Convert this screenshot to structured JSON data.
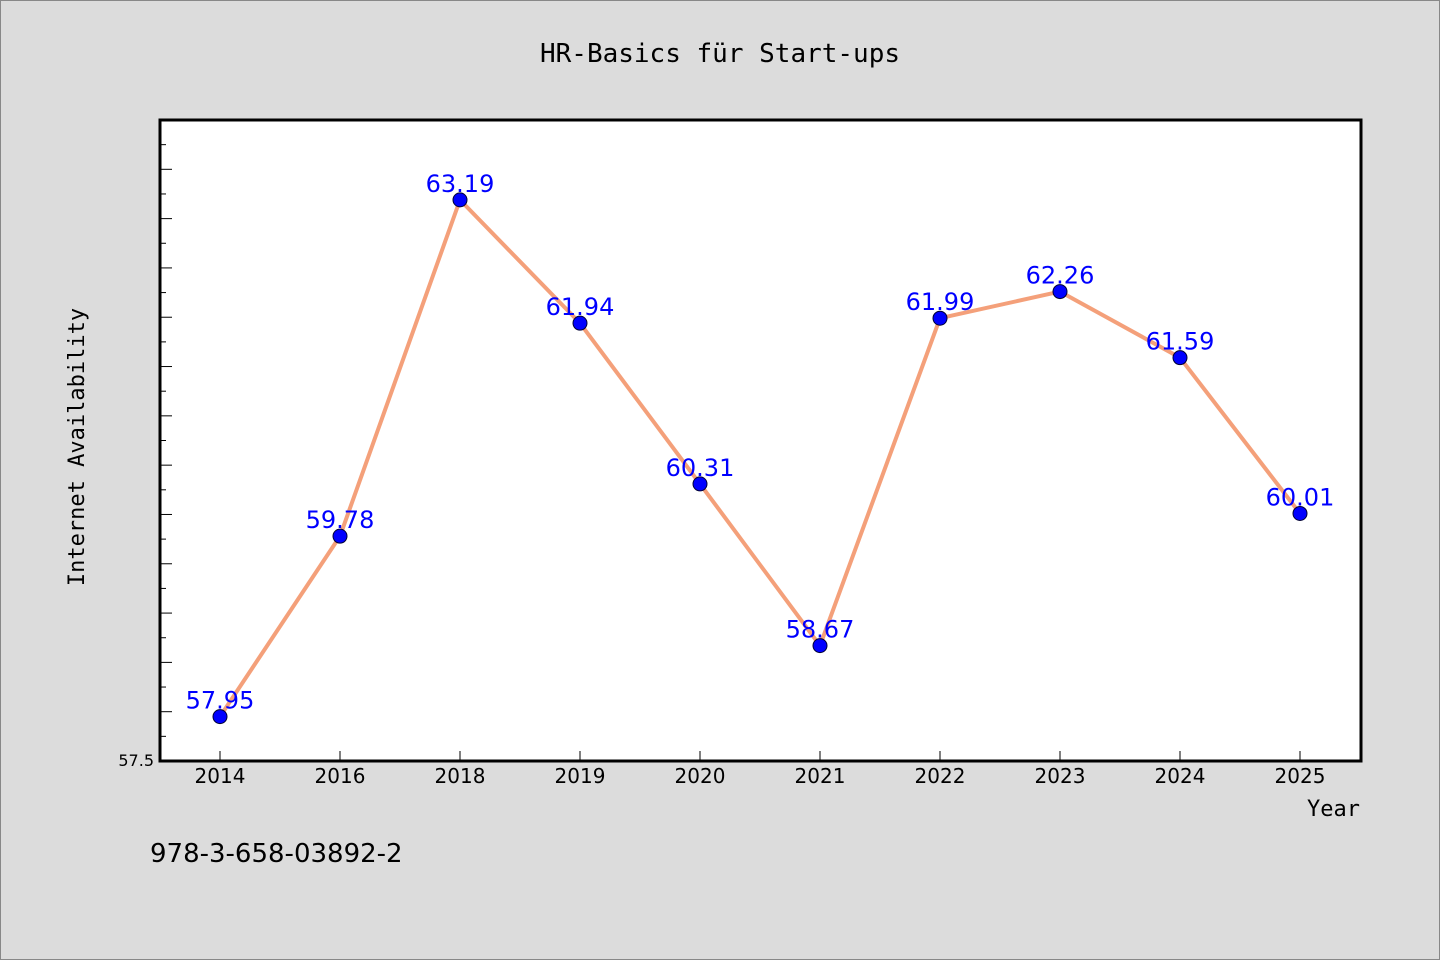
{
  "chart_data": {
    "type": "line",
    "title": "HR-Basics für Start-ups",
    "xlabel": "Year",
    "ylabel": "Internet Availability",
    "categories": [
      "2014",
      "2016",
      "2018",
      "2019",
      "2020",
      "2021",
      "2022",
      "2023",
      "2024",
      "2025"
    ],
    "values": [
      57.95,
      59.78,
      63.19,
      61.94,
      60.31,
      58.67,
      61.99,
      62.26,
      61.59,
      60.01
    ],
    "data_labels": [
      "57.95",
      "59.78",
      "63.19",
      "61.94",
      "60.31",
      "58.67",
      "61.99",
      "62.26",
      "61.59",
      "60.01"
    ],
    "ylim": [
      57.5,
      64.0
    ],
    "y_tick_labels": [
      "57.5"
    ],
    "grid": false,
    "legend": "none",
    "colors": {
      "line": "#f4a07a",
      "marker": "#0000ff",
      "data_label": "#0000ff",
      "background": "#dcdcdc",
      "plot_background": "#ffffff"
    }
  },
  "footer": {
    "isbn": "978-3-658-03892-2"
  }
}
